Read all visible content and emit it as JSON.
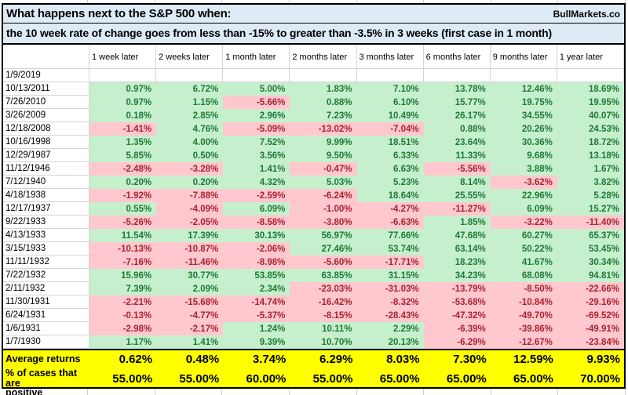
{
  "title": {
    "line1": "What happens next to the S&P 500 when:",
    "line2": "the 10 week rate of change goes from less than -15% to greater than -3.5% in 3 weeks (first case in 1 month)",
    "brand": "BullMarkets.co"
  },
  "colors": {
    "title-bg": "#DEEAF6",
    "pos-bg": "#C6EFCE",
    "pos-text": "#1E7B35",
    "neg-bg": "#FFC7CE",
    "neg-text": "#A82330",
    "summary-bg": "#FFFF00",
    "grid": "#D5D5D5",
    "border": "#000000"
  },
  "chart_data": {
    "type": "table",
    "title": "What happens next to the S&P 500 when: the 10 week rate of change goes from less than -15% to greater than -3.5% in 3 weeks (first case in 1 month)",
    "columns": [
      "1 week later",
      "2 weeks later",
      "1 month later",
      "2 months later",
      "3 months later",
      "6 months later",
      "9 months later",
      "1 year later"
    ],
    "signal_date": "1/9/2019",
    "rows": [
      {
        "date": "10/13/2011",
        "values": [
          "0.97%",
          "6.72%",
          "5.00%",
          "1.83%",
          "7.10%",
          "13.78%",
          "12.46%",
          "18.69%"
        ]
      },
      {
        "date": "7/26/2010",
        "values": [
          "0.97%",
          "1.15%",
          "-5.66%",
          "0.88%",
          "6.10%",
          "15.77%",
          "19.75%",
          "19.95%"
        ]
      },
      {
        "date": "3/26/2009",
        "values": [
          "0.18%",
          "2.85%",
          "2.96%",
          "7.23%",
          "10.49%",
          "26.17%",
          "34.55%",
          "40.07%"
        ]
      },
      {
        "date": "12/18/2008",
        "values": [
          "-1.41%",
          "4.76%",
          "-5.09%",
          "-13.02%",
          "-7.04%",
          "0.88%",
          "20.26%",
          "24.53%"
        ]
      },
      {
        "date": "10/16/1998",
        "values": [
          "1.35%",
          "4.00%",
          "7.52%",
          "9.99%",
          "18.51%",
          "23.64%",
          "30.36%",
          "18.72%"
        ]
      },
      {
        "date": "12/29/1987",
        "values": [
          "5.85%",
          "0.50%",
          "3.56%",
          "9.50%",
          "6.33%",
          "11.33%",
          "9.68%",
          "13.18%"
        ]
      },
      {
        "date": "11/12/1946",
        "values": [
          "-2.48%",
          "-3.28%",
          "1.41%",
          "-0.47%",
          "6.63%",
          "-5.56%",
          "3.88%",
          "1.67%"
        ]
      },
      {
        "date": "7/12/1940",
        "values": [
          "0.20%",
          "0.20%",
          "4.32%",
          "5.03%",
          "5.23%",
          "8.14%",
          "-3.62%",
          "3.82%"
        ]
      },
      {
        "date": "4/18/1938",
        "values": [
          "-1.92%",
          "-7.88%",
          "-2.59%",
          "-6.24%",
          "18.64%",
          "25.55%",
          "22.96%",
          "5.28%"
        ]
      },
      {
        "date": "12/17/1937",
        "values": [
          "0.55%",
          "-4.09%",
          "6.09%",
          "-1.00%",
          "-4.27%",
          "-11.27%",
          "6.09%",
          "15.27%"
        ]
      },
      {
        "date": "9/22/1933",
        "values": [
          "-5.26%",
          "-2.05%",
          "-8.58%",
          "-3.80%",
          "-6.63%",
          "1.85%",
          "-3.22%",
          "-11.40%"
        ]
      },
      {
        "date": "4/13/1933",
        "values": [
          "11.54%",
          "17.39%",
          "30.13%",
          "56.97%",
          "77.66%",
          "47.68%",
          "60.27%",
          "65.37%"
        ]
      },
      {
        "date": "3/15/1933",
        "values": [
          "-10.13%",
          "-10.87%",
          "-2.06%",
          "27.46%",
          "53.74%",
          "63.14%",
          "50.22%",
          "53.45%"
        ]
      },
      {
        "date": "11/11/1932",
        "values": [
          "-7.16%",
          "-11.46%",
          "-8.98%",
          "-5.60%",
          "-17.71%",
          "18.23%",
          "41.67%",
          "30.34%"
        ]
      },
      {
        "date": "7/22/1932",
        "values": [
          "15.96%",
          "30.77%",
          "53.85%",
          "63.85%",
          "31.15%",
          "34.23%",
          "68.08%",
          "94.81%"
        ]
      },
      {
        "date": "2/11/1932",
        "values": [
          "7.39%",
          "2.09%",
          "2.34%",
          "-23.03%",
          "-31.03%",
          "-13.79%",
          "-8.50%",
          "-22.66%"
        ]
      },
      {
        "date": "11/30/1931",
        "values": [
          "-2.21%",
          "-15.68%",
          "-14.74%",
          "-16.42%",
          "-8.32%",
          "-53.68%",
          "-10.84%",
          "-29.16%"
        ]
      },
      {
        "date": "6/24/1931",
        "values": [
          "-0.13%",
          "-4.77%",
          "-5.37%",
          "-8.15%",
          "-28.43%",
          "-47.32%",
          "-49.70%",
          "-69.52%"
        ]
      },
      {
        "date": "1/6/1931",
        "values": [
          "-2.98%",
          "-2.17%",
          "1.24%",
          "10.11%",
          "2.29%",
          "-6.39%",
          "-39.86%",
          "-49.91%"
        ]
      },
      {
        "date": "1/7/1930",
        "values": [
          "1.17%",
          "1.41%",
          "9.39%",
          "10.70%",
          "20.13%",
          "-6.29%",
          "-12.67%",
          "-23.84%"
        ]
      }
    ],
    "summary": {
      "average_label": "Average returns",
      "average_values": [
        "0.62%",
        "0.48%",
        "3.74%",
        "6.29%",
        "8.03%",
        "7.30%",
        "12.59%",
        "9.93%"
      ],
      "percent_label": "% of cases that are\npositive",
      "percent_values": [
        "55.00%",
        "55.00%",
        "60.00%",
        "55.00%",
        "65.00%",
        "65.00%",
        "65.00%",
        "70.00%"
      ]
    }
  }
}
